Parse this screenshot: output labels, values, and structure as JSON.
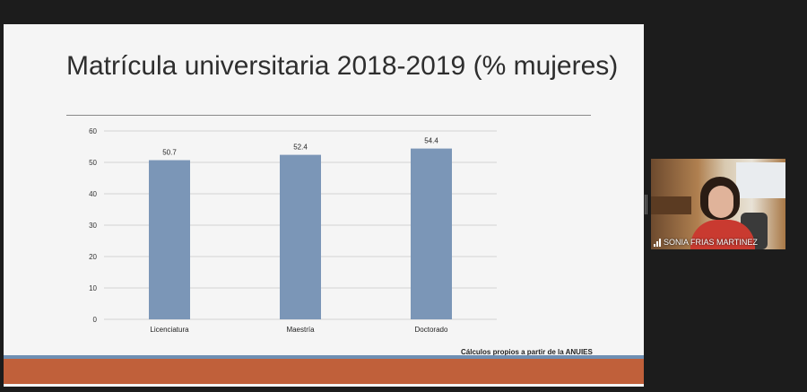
{
  "slide": {
    "title": "Matrícula universitaria 2018-2019 (% mujeres)",
    "source_note": "Cálculos propios a partir de la ANUIES"
  },
  "chart_data": {
    "type": "bar",
    "title": "",
    "categories": [
      "Licenciatura",
      "Maestría",
      "Doctorado"
    ],
    "values": [
      50.7,
      52.4,
      54.4
    ],
    "value_labels": [
      "50.7",
      "52.4",
      "54.4"
    ],
    "xlabel": "",
    "ylabel": "",
    "ylim": [
      0,
      60
    ],
    "yticks": [
      0,
      10,
      20,
      30,
      40,
      50,
      60
    ],
    "grid": true,
    "bar_color": "#7b96b7"
  },
  "webcam": {
    "participant_name": "SONIA FRIAS MARTINEZ",
    "icon": "signal-strength-icon"
  },
  "colors": {
    "footer_accent": "#c0603a",
    "footer_stripe": "#6f8fb3",
    "slide_background": "#f5f5f5",
    "app_background": "#1c1c1c"
  }
}
